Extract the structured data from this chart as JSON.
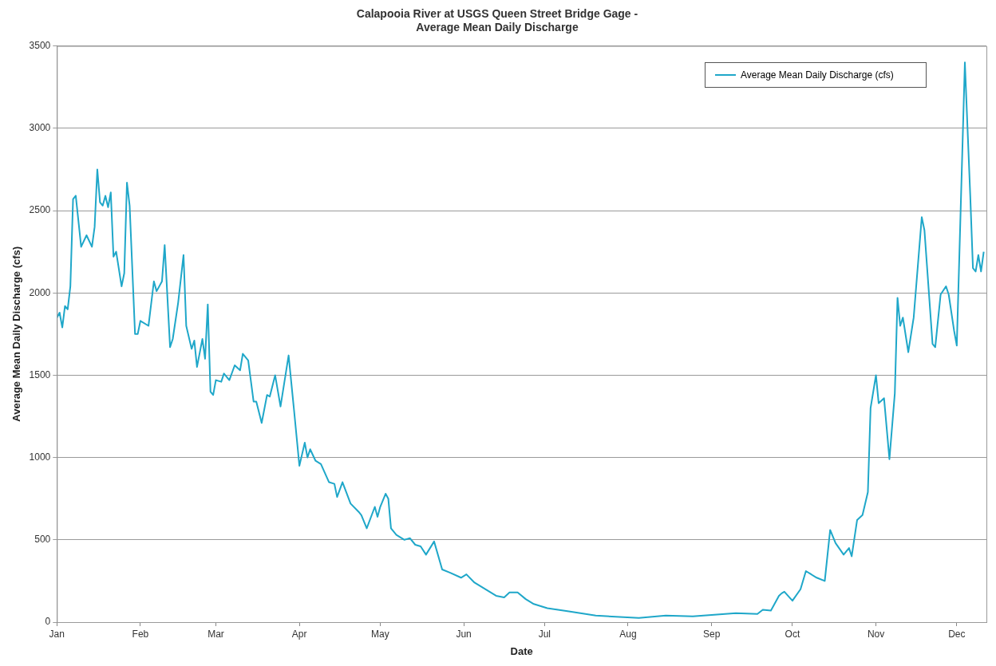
{
  "chart_data": {
    "type": "line",
    "title": "Calapooia River at USGS Queen Street Bridge Gage -\nAverage Mean Daily Discharge",
    "xlabel": "Date",
    "ylabel": "Average Mean Daily Discharge (cfs)",
    "xlim": [
      "--01-01",
      "--12-12"
    ],
    "xticks": [
      {
        "value": "--01-01",
        "label": "Jan"
      },
      {
        "value": "--02-01",
        "label": "Feb"
      },
      {
        "value": "--03-01",
        "label": "Mar"
      },
      {
        "value": "--04-01",
        "label": "Apr"
      },
      {
        "value": "--05-01",
        "label": "May"
      },
      {
        "value": "--06-01",
        "label": "Jun"
      },
      {
        "value": "--07-01",
        "label": "Jul"
      },
      {
        "value": "--08-01",
        "label": "Aug"
      },
      {
        "value": "--09-01",
        "label": "Sep"
      },
      {
        "value": "--10-01",
        "label": "Oct"
      },
      {
        "value": "--11-01",
        "label": "Nov"
      },
      {
        "value": "--12-01",
        "label": "Dec"
      }
    ],
    "ylim": [
      0,
      3500
    ],
    "yticks": [
      0,
      500,
      1000,
      1500,
      2000,
      2500,
      3000,
      3500
    ],
    "grid": "y",
    "legend": "top right",
    "marker": "none",
    "line_style": "solid",
    "series": [
      {
        "name": "Average Mean Daily Discharge (cfs)",
        "color": "#1fa7c9",
        "x": [
          "--01-01",
          "--01-02",
          "--01-03",
          "--01-04",
          "--01-05",
          "--01-06",
          "--01-07",
          "--01-08",
          "--01-10",
          "--01-12",
          "--01-14",
          "--01-15",
          "--01-16",
          "--01-17",
          "--01-18",
          "--01-19",
          "--01-20",
          "--01-21",
          "--01-22",
          "--01-23",
          "--01-25",
          "--01-26",
          "--01-27",
          "--01-28",
          "--01-30",
          "--01-31",
          "--02-01",
          "--02-04",
          "--02-06",
          "--02-07",
          "--02-09",
          "--02-10",
          "--02-12",
          "--02-13",
          "--02-15",
          "--02-17",
          "--02-18",
          "--02-20",
          "--02-21",
          "--02-22",
          "--02-24",
          "--02-25",
          "--02-26",
          "--02-27",
          "--02-28",
          "--03-01",
          "--03-03",
          "--03-04",
          "--03-06",
          "--03-08",
          "--03-10",
          "--03-11",
          "--03-13",
          "--03-15",
          "--03-16",
          "--03-18",
          "--03-20",
          "--03-21",
          "--03-23",
          "--03-25",
          "--03-28",
          "--03-30",
          "--04-01",
          "--04-03",
          "--04-04",
          "--04-05",
          "--04-07",
          "--04-09",
          "--04-12",
          "--04-14",
          "--04-15",
          "--04-17",
          "--04-20",
          "--04-23",
          "--04-24",
          "--04-26",
          "--04-29",
          "--04-30",
          "--05-01",
          "--05-03",
          "--05-04",
          "--05-05",
          "--05-07",
          "--05-10",
          "--05-12",
          "--05-14",
          "--05-16",
          "--05-18",
          "--05-21",
          "--05-24",
          "--05-27",
          "--05-31",
          "--06-02",
          "--06-05",
          "--06-09",
          "--06-13",
          "--06-16",
          "--06-18",
          "--06-21",
          "--06-24",
          "--06-27",
          "--07-02",
          "--07-10",
          "--07-20",
          "--08-05",
          "--08-15",
          "--08-25",
          "--09-10",
          "--09-18",
          "--09-20",
          "--09-23",
          "--09-26",
          "--09-27",
          "--09-28",
          "--10-01",
          "--10-04",
          "--10-06",
          "--10-10",
          "--10-13",
          "--10-15",
          "--10-17",
          "--10-20",
          "--10-22",
          "--10-23",
          "--10-25",
          "--10-27",
          "--10-29",
          "--10-30",
          "--11-01",
          "--11-02",
          "--11-04",
          "--11-06",
          "--11-08",
          "--11-09",
          "--11-10",
          "--11-11",
          "--11-13",
          "--11-15",
          "--11-18",
          "--11-19",
          "--11-22",
          "--11-23",
          "--11-25",
          "--11-27",
          "--11-28",
          "--11-30",
          "--12-01",
          "--12-04",
          "--12-06",
          "--12-07",
          "--12-08",
          "--12-09",
          "--12-10",
          "--12-11"
        ],
        "values": [
          1850,
          1880,
          1790,
          1920,
          1900,
          2040,
          2570,
          2590,
          2280,
          2350,
          2280,
          2400,
          2750,
          2550,
          2530,
          2590,
          2520,
          2610,
          2220,
          2250,
          2040,
          2120,
          2670,
          2530,
          1750,
          1750,
          1830,
          1800,
          2070,
          2010,
          2070,
          2290,
          1670,
          1720,
          1940,
          2230,
          1800,
          1660,
          1710,
          1550,
          1720,
          1600,
          1930,
          1400,
          1380,
          1470,
          1460,
          1510,
          1470,
          1560,
          1530,
          1630,
          1590,
          1340,
          1340,
          1210,
          1380,
          1370,
          1500,
          1310,
          1620,
          1290,
          950,
          1090,
          1000,
          1050,
          980,
          960,
          850,
          840,
          760,
          850,
          720,
          670,
          650,
          570,
          700,
          640,
          700,
          780,
          750,
          570,
          530,
          500,
          510,
          470,
          460,
          410,
          490,
          320,
          300,
          270,
          290,
          240,
          200,
          160,
          150,
          180,
          180,
          140,
          110,
          85,
          65,
          40,
          25,
          40,
          35,
          55,
          50,
          75,
          70,
          160,
          175,
          185,
          130,
          200,
          310,
          270,
          250,
          560,
          480,
          410,
          450,
          400,
          620,
          650,
          790,
          1300,
          1500,
          1330,
          1360,
          990,
          1390,
          1970,
          1800,
          1850,
          1640,
          1850,
          2460,
          2380,
          1690,
          1670,
          1990,
          2040,
          1990,
          1770,
          1680,
          3400,
          2590,
          2150,
          2130,
          2230,
          2130,
          2250
        ]
      }
    ]
  }
}
